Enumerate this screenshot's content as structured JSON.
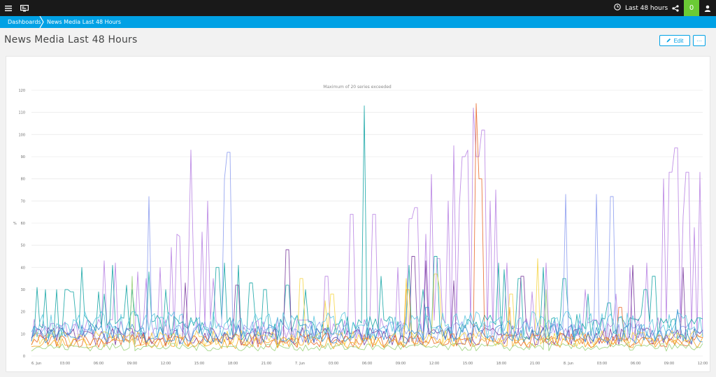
{
  "topbar": {
    "menu_icon": "hamburger-menu-icon",
    "dashboard_icon": "monitor-icon",
    "timeframe_label": "Last 48 hours",
    "clock_icon": "clock-icon",
    "share_icon": "share-icon",
    "problems_count": "0",
    "user_icon": "user-icon"
  },
  "breadcrumb": {
    "items": [
      "Dashboards",
      "News Media Last 48 Hours"
    ]
  },
  "page": {
    "title": "News Media Last 48 Hours",
    "edit_label": "Edit",
    "more_label": "···"
  },
  "colors": {
    "topbar": "#191919",
    "breadcrumb": "#00a1e5",
    "accent": "#00a1e5",
    "badge": "#6bcb35",
    "series_palette": [
      "#b984e3",
      "#18a6a6",
      "#8d9df0",
      "#7c3f9e",
      "#f5a623",
      "#f5d547",
      "#e86a2c",
      "#5bc8e0",
      "#3a8fd0",
      "#9bd17a"
    ]
  },
  "chart_data": {
    "type": "line",
    "title": "Maximum of 20 series exceeded",
    "xlabel": "",
    "ylabel": "%",
    "ylim": [
      0,
      120
    ],
    "yticks": [
      0,
      10,
      20,
      30,
      40,
      50,
      60,
      70,
      80,
      90,
      100,
      110,
      120
    ],
    "x_tick_labels": [
      "6. Jun",
      "03:00",
      "06:00",
      "09:00",
      "12:00",
      "15:00",
      "18:00",
      "21:00",
      "7. Jun",
      "03:00",
      "06:00",
      "09:00",
      "12:00",
      "15:00",
      "18:00",
      "21:00",
      "8. Jun",
      "03:00",
      "06:00",
      "09:00",
      "12:00"
    ],
    "x_range_hours": [
      0,
      60
    ],
    "grid": true,
    "legend": "none",
    "series": [
      {
        "color": "#b984e3",
        "baseline": 12,
        "spikes": [
          [
            6.5,
            43
          ],
          [
            7.6,
            42
          ],
          [
            9.5,
            38
          ],
          [
            10.3,
            35
          ],
          [
            11.6,
            40
          ],
          [
            12.6,
            49
          ],
          [
            12.9,
            55
          ],
          [
            13.3,
            54
          ],
          [
            13.9,
            32
          ],
          [
            14.2,
            93
          ],
          [
            14.5,
            38
          ],
          [
            15.3,
            56
          ],
          [
            15.8,
            70
          ],
          [
            16.3,
            35
          ],
          [
            26.4,
            36
          ],
          [
            28.6,
            64
          ],
          [
            30.6,
            64
          ],
          [
            32.8,
            40
          ],
          [
            33.9,
            62
          ],
          [
            34.4,
            67
          ],
          [
            35.3,
            55
          ],
          [
            35.8,
            82
          ],
          [
            36.4,
            44
          ],
          [
            37.2,
            70
          ],
          [
            37.7,
            95
          ],
          [
            38.2,
            68
          ],
          [
            38.6,
            90
          ],
          [
            39.0,
            93
          ],
          [
            39.5,
            112
          ],
          [
            39.9,
            90
          ],
          [
            40.4,
            102
          ],
          [
            41.0,
            70
          ],
          [
            41.5,
            75
          ],
          [
            42.5,
            42
          ],
          [
            44.8,
            29
          ],
          [
            46.0,
            42
          ],
          [
            49.5,
            30
          ],
          [
            52.2,
            28
          ],
          [
            53.5,
            40
          ],
          [
            55.0,
            42
          ],
          [
            56.5,
            80
          ],
          [
            57.1,
            83
          ],
          [
            57.6,
            94
          ],
          [
            58.2,
            63
          ],
          [
            58.6,
            83
          ],
          [
            59.2,
            58
          ],
          [
            59.7,
            83
          ]
        ]
      },
      {
        "color": "#18a6a6",
        "baseline": 13,
        "spikes": [
          [
            0.5,
            31
          ],
          [
            1.3,
            30
          ],
          [
            2.3,
            30
          ],
          [
            3.0,
            30
          ],
          [
            3.3,
            30
          ],
          [
            3.6,
            29
          ],
          [
            4.6,
            40
          ],
          [
            5.9,
            29
          ],
          [
            6.5,
            28
          ],
          [
            7.2,
            41
          ],
          [
            8.6,
            32
          ],
          [
            9.0,
            30
          ],
          [
            10.6,
            38
          ],
          [
            12.0,
            30
          ],
          [
            16.6,
            40
          ],
          [
            17.3,
            42
          ],
          [
            18.5,
            41
          ],
          [
            19.6,
            33
          ],
          [
            20.9,
            30
          ],
          [
            22.9,
            32
          ],
          [
            24.5,
            30
          ],
          [
            29.8,
            113
          ],
          [
            31.2,
            36
          ],
          [
            33.8,
            41
          ],
          [
            35.0,
            30
          ],
          [
            36.1,
            45
          ],
          [
            41.8,
            42
          ],
          [
            42.3,
            39
          ],
          [
            43.6,
            35
          ],
          [
            45.8,
            40
          ],
          [
            47.6,
            35
          ],
          [
            49.8,
            28
          ],
          [
            51.6,
            24
          ],
          [
            54.9,
            30
          ],
          [
            55.6,
            36
          ]
        ]
      },
      {
        "color": "#8d9df0",
        "baseline": 11,
        "spikes": [
          [
            10.5,
            72
          ],
          [
            17.4,
            80
          ],
          [
            17.6,
            92
          ],
          [
            47.8,
            73
          ],
          [
            50.5,
            73
          ],
          [
            51.9,
            72
          ]
        ]
      },
      {
        "color": "#7c3f9e",
        "baseline": 9,
        "spikes": [
          [
            13.8,
            33
          ],
          [
            18.4,
            32
          ],
          [
            22.9,
            48
          ],
          [
            34.1,
            45
          ],
          [
            35.2,
            43
          ],
          [
            37.8,
            34
          ],
          [
            43.9,
            36
          ],
          [
            53.7,
            41
          ],
          [
            58.2,
            40
          ]
        ]
      },
      {
        "color": "#f5d547",
        "baseline": 8,
        "spikes": [
          [
            24.1,
            35
          ],
          [
            26.3,
            25
          ],
          [
            26.9,
            28
          ],
          [
            33.5,
            35
          ],
          [
            36.1,
            37
          ],
          [
            36.5,
            30
          ],
          [
            42.9,
            28
          ],
          [
            45.3,
            44
          ]
        ]
      },
      {
        "color": "#e86a2c",
        "baseline": 7,
        "spikes": [
          [
            39.8,
            114
          ],
          [
            40.1,
            80
          ],
          [
            52.6,
            22
          ]
        ]
      },
      {
        "color": "#f5a623",
        "baseline": 6,
        "spikes": [
          [
            33.6,
            30
          ],
          [
            42.8,
            22
          ]
        ]
      },
      {
        "color": "#5bc8e0",
        "baseline": 14,
        "spikes": [
          [
            12.8,
            20
          ],
          [
            27.0,
            18
          ],
          [
            47.9,
            20
          ],
          [
            51.8,
            19
          ]
        ]
      },
      {
        "color": "#3a8fd0",
        "baseline": 10,
        "spikes": [
          [
            35.4,
            22
          ],
          [
            57.8,
            21
          ]
        ]
      },
      {
        "color": "#9bd17a",
        "baseline": 4,
        "spikes": [
          [
            9.0,
            36
          ],
          [
            46.0,
            30
          ]
        ]
      }
    ]
  }
}
